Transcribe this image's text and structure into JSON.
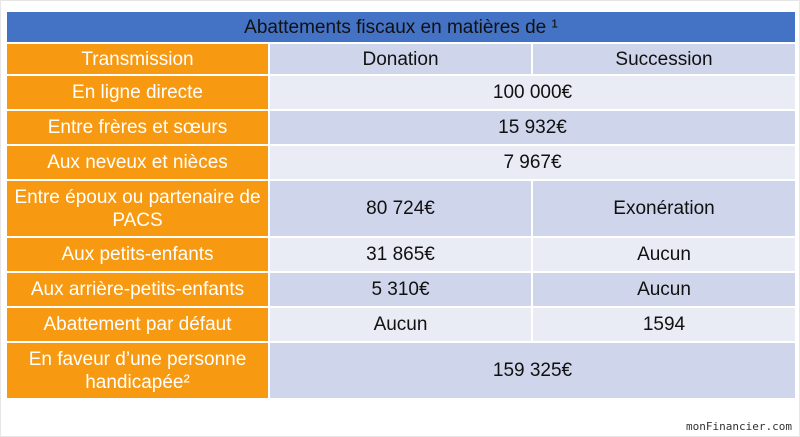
{
  "table": {
    "title": "Abattements fiscaux en matières de ¹",
    "headers": {
      "transmission": "Transmission",
      "donation": "Donation",
      "succession": "Succession"
    },
    "rows": [
      {
        "label": "En ligne directe",
        "shared": "100 000€"
      },
      {
        "label": "Entre frères et sœurs",
        "shared": "15 932€"
      },
      {
        "label": "Aux neveux et nièces",
        "shared": "7 967€"
      },
      {
        "label": "Entre époux ou partenaire de PACS",
        "donation": "80 724€",
        "succession": "Exonération"
      },
      {
        "label": "Aux petits-enfants",
        "donation": "31 865€",
        "succession": "Aucun"
      },
      {
        "label": "Aux arrière-petits-enfants",
        "donation": "5 310€",
        "succession": "Aucun"
      },
      {
        "label": "Abattement par défaut",
        "donation": "Aucun",
        "succession": "1594"
      },
      {
        "label": "En faveur d’une personne handicapée²",
        "shared": "159 325€"
      }
    ]
  },
  "watermark": "monFinancier.com",
  "colors": {
    "title_bg": "#4472c4",
    "label_bg": "#f79a12",
    "row_dark": "#cfd5ea",
    "row_light": "#e9ebf5"
  }
}
